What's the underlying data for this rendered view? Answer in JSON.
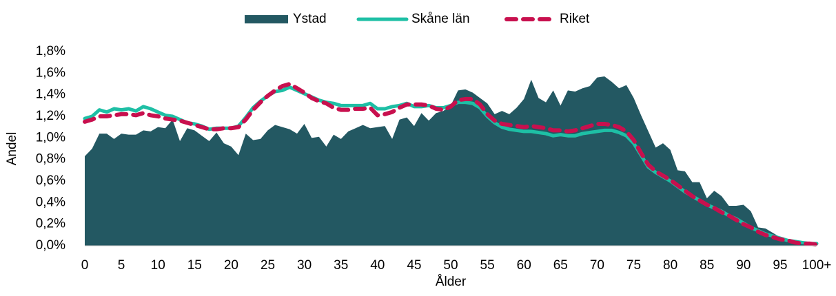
{
  "chart_data": {
    "type": "line",
    "xlabel": "Ålder",
    "ylabel": "Andel",
    "legend": "top",
    "grid": false,
    "categories": [
      "0",
      null,
      null,
      null,
      null,
      "5",
      null,
      null,
      null,
      null,
      "10",
      null,
      null,
      null,
      null,
      "15",
      null,
      null,
      null,
      null,
      "20",
      null,
      null,
      null,
      null,
      "25",
      null,
      null,
      null,
      null,
      "30",
      null,
      null,
      null,
      null,
      "35",
      null,
      null,
      null,
      null,
      "40",
      null,
      null,
      null,
      null,
      "45",
      null,
      null,
      null,
      null,
      "50",
      null,
      null,
      null,
      null,
      "55",
      null,
      null,
      null,
      null,
      "60",
      null,
      null,
      null,
      null,
      "65",
      null,
      null,
      null,
      null,
      "70",
      null,
      null,
      null,
      null,
      "75",
      null,
      null,
      null,
      null,
      "80",
      null,
      null,
      null,
      null,
      "85",
      null,
      null,
      null,
      null,
      "90",
      null,
      null,
      null,
      null,
      "95",
      null,
      null,
      null,
      null,
      "100+"
    ],
    "ylim": [
      0,
      1.8
    ],
    "yticks": [
      {
        "value": 0,
        "label": "0,0%"
      },
      {
        "value": 0.2,
        "label": "0,2%"
      },
      {
        "value": 0.4,
        "label": "0,4%"
      },
      {
        "value": 0.6,
        "label": "0,6%"
      },
      {
        "value": 0.8,
        "label": "0,8%"
      },
      {
        "value": 1.0,
        "label": "1,0%"
      },
      {
        "value": 1.2,
        "label": "1,2%"
      },
      {
        "value": 1.4,
        "label": "1,4%"
      },
      {
        "value": 1.6,
        "label": "1,6%"
      },
      {
        "value": 1.8,
        "label": "1,8%"
      }
    ],
    "series": [
      {
        "name": "Ystad",
        "type": "area",
        "color": "#235862",
        "values": [
          0.83,
          0.9,
          1.04,
          1.04,
          0.99,
          1.04,
          1.03,
          1.03,
          1.07,
          1.06,
          1.1,
          1.09,
          1.17,
          0.97,
          1.09,
          1.07,
          1.02,
          0.97,
          1.05,
          0.95,
          0.92,
          0.84,
          1.04,
          0.98,
          0.99,
          1.07,
          1.12,
          1.1,
          1.08,
          1.04,
          1.13,
          1.0,
          1.01,
          0.92,
          1.03,
          0.99,
          1.06,
          1.09,
          1.12,
          1.09,
          1.1,
          1.11,
          0.99,
          1.17,
          1.19,
          1.11,
          1.23,
          1.16,
          1.23,
          1.25,
          1.3,
          1.44,
          1.45,
          1.42,
          1.37,
          1.32,
          1.22,
          1.25,
          1.22,
          1.28,
          1.36,
          1.54,
          1.37,
          1.33,
          1.44,
          1.3,
          1.44,
          1.43,
          1.46,
          1.48,
          1.56,
          1.57,
          1.52,
          1.46,
          1.49,
          1.37,
          1.21,
          1.06,
          0.91,
          0.95,
          0.89,
          0.7,
          0.69,
          0.59,
          0.59,
          0.44,
          0.51,
          0.46,
          0.37,
          0.37,
          0.38,
          0.32,
          0.17,
          0.16,
          0.12,
          0.08,
          0.06,
          0.04,
          0.03,
          0.02,
          0.02
        ]
      },
      {
        "name": "Skåne län",
        "type": "line",
        "color": "#1ebfa5",
        "values": [
          1.18,
          1.2,
          1.26,
          1.24,
          1.27,
          1.26,
          1.27,
          1.25,
          1.29,
          1.27,
          1.24,
          1.21,
          1.2,
          1.17,
          1.14,
          1.13,
          1.11,
          1.08,
          1.09,
          1.09,
          1.09,
          1.11,
          1.19,
          1.28,
          1.34,
          1.39,
          1.43,
          1.44,
          1.47,
          1.44,
          1.41,
          1.38,
          1.35,
          1.33,
          1.32,
          1.3,
          1.3,
          1.3,
          1.3,
          1.32,
          1.27,
          1.27,
          1.29,
          1.3,
          1.32,
          1.29,
          1.29,
          1.3,
          1.28,
          1.28,
          1.3,
          1.33,
          1.33,
          1.32,
          1.28,
          1.2,
          1.14,
          1.1,
          1.08,
          1.07,
          1.06,
          1.06,
          1.05,
          1.04,
          1.02,
          1.03,
          1.02,
          1.02,
          1.04,
          1.05,
          1.06,
          1.07,
          1.07,
          1.05,
          1.02,
          0.95,
          0.84,
          0.73,
          0.68,
          0.64,
          0.6,
          0.55,
          0.5,
          0.46,
          0.42,
          0.38,
          0.35,
          0.32,
          0.28,
          0.25,
          0.21,
          0.17,
          0.14,
          0.11,
          0.09,
          0.07,
          0.05,
          0.04,
          0.03,
          0.02,
          0.02
        ]
      },
      {
        "name": "Riket",
        "type": "line",
        "dashed": true,
        "color": "#c8104e",
        "values": [
          1.15,
          1.17,
          1.2,
          1.2,
          1.21,
          1.22,
          1.22,
          1.21,
          1.23,
          1.21,
          1.2,
          1.18,
          1.17,
          1.16,
          1.14,
          1.12,
          1.1,
          1.08,
          1.08,
          1.09,
          1.09,
          1.1,
          1.17,
          1.26,
          1.33,
          1.39,
          1.44,
          1.48,
          1.5,
          1.46,
          1.42,
          1.37,
          1.34,
          1.32,
          1.28,
          1.26,
          1.26,
          1.27,
          1.27,
          1.28,
          1.21,
          1.22,
          1.24,
          1.28,
          1.31,
          1.31,
          1.31,
          1.3,
          1.27,
          1.26,
          1.29,
          1.35,
          1.36,
          1.36,
          1.31,
          1.22,
          1.16,
          1.13,
          1.12,
          1.11,
          1.1,
          1.11,
          1.1,
          1.09,
          1.07,
          1.07,
          1.06,
          1.07,
          1.09,
          1.11,
          1.13,
          1.13,
          1.12,
          1.1,
          1.06,
          0.98,
          0.86,
          0.75,
          0.69,
          0.65,
          0.61,
          0.56,
          0.51,
          0.46,
          0.42,
          0.38,
          0.35,
          0.31,
          0.28,
          0.24,
          0.2,
          0.17,
          0.13,
          0.1,
          0.08,
          0.06,
          0.05,
          0.03,
          0.02,
          0.02,
          0.01
        ]
      }
    ]
  }
}
